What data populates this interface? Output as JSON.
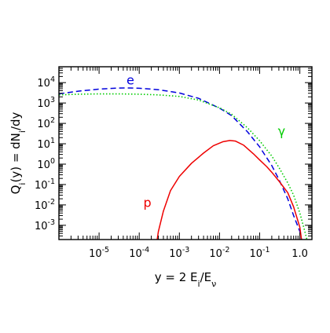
{
  "chart_data": {
    "type": "line",
    "title": "",
    "xlabel": "y = 2 E_i/E_ν",
    "ylabel": "Q_i(y) = dN_i/dy",
    "xscale": "log",
    "yscale": "log",
    "xlim": [
      1e-06,
      2
    ],
    "ylim": [
      0.0002,
      60000
    ],
    "grid": false,
    "legend": "none",
    "x_ticks": [
      {
        "value": 1e-05,
        "base": "10",
        "exp": "-5"
      },
      {
        "value": 0.0001,
        "base": "10",
        "exp": "-4"
      },
      {
        "value": 0.001,
        "base": "10",
        "exp": "-3"
      },
      {
        "value": 0.01,
        "base": "10",
        "exp": "-2"
      },
      {
        "value": 0.1,
        "base": "10",
        "exp": "-1"
      },
      {
        "value": 1,
        "base": "1.0",
        "exp": ""
      }
    ],
    "y_ticks": [
      {
        "value": 10000.0,
        "base": "10",
        "exp": "4"
      },
      {
        "value": 1000.0,
        "base": "10",
        "exp": "3"
      },
      {
        "value": 100.0,
        "base": "10",
        "exp": "2"
      },
      {
        "value": 10.0,
        "base": "10",
        "exp": "1"
      },
      {
        "value": 1,
        "base": "10",
        "exp": "0"
      },
      {
        "value": 0.1,
        "base": "10",
        "exp": "-1"
      },
      {
        "value": 0.01,
        "base": "10",
        "exp": "-2"
      },
      {
        "value": 0.001,
        "base": "10",
        "exp": "-3"
      }
    ],
    "series": [
      {
        "name": "e",
        "color": "#0000dd",
        "dash": "dashed",
        "label_at": {
          "x": 6e-05,
          "y": 8000
        },
        "x": [
          1e-06,
          3e-06,
          1e-05,
          3e-05,
          5e-05,
          0.0001,
          0.0003,
          0.001,
          0.003,
          0.01,
          0.02,
          0.05,
          0.1,
          0.2,
          0.3,
          0.5,
          0.7,
          1.0,
          1.1
        ],
        "y": [
          2800,
          3800,
          4800,
          5400,
          5500,
          5300,
          4500,
          3100,
          1700,
          560,
          240,
          38,
          7,
          0.85,
          0.18,
          0.02,
          0.003,
          0.0005,
          0.0002
        ]
      },
      {
        "name": "γ",
        "color": "#00cc00",
        "dash": "dotted",
        "label_at": {
          "x": 0.35,
          "y": 25
        },
        "x": [
          1e-06,
          3e-06,
          1e-05,
          3e-05,
          0.0001,
          0.0003,
          0.001,
          0.003,
          0.01,
          0.02,
          0.05,
          0.1,
          0.2,
          0.3,
          0.5,
          0.7,
          1.0,
          1.3,
          1.5
        ],
        "y": [
          2500,
          2700,
          2800,
          2800,
          2700,
          2500,
          2100,
          1400,
          580,
          280,
          60,
          14,
          2.5,
          0.7,
          0.12,
          0.03,
          0.004,
          0.0006,
          0.0002
        ]
      },
      {
        "name": "p",
        "color": "#ee0000",
        "dash": "solid",
        "label_at": {
          "x": 0.00016,
          "y": 0.008
        },
        "x": [
          0.00028,
          0.0003,
          0.0004,
          0.0006,
          0.001,
          0.002,
          0.004,
          0.007,
          0.012,
          0.018,
          0.025,
          0.04,
          0.07,
          0.1,
          0.15,
          0.2,
          0.3,
          0.5,
          0.7,
          1.0,
          1.1
        ],
        "y": [
          0.0002,
          0.0005,
          0.005,
          0.05,
          0.25,
          1.1,
          3.5,
          8,
          12.5,
          14.5,
          13.5,
          8.5,
          3.2,
          1.6,
          0.75,
          0.4,
          0.15,
          0.04,
          0.008,
          0.0008,
          0.0002
        ]
      }
    ]
  }
}
